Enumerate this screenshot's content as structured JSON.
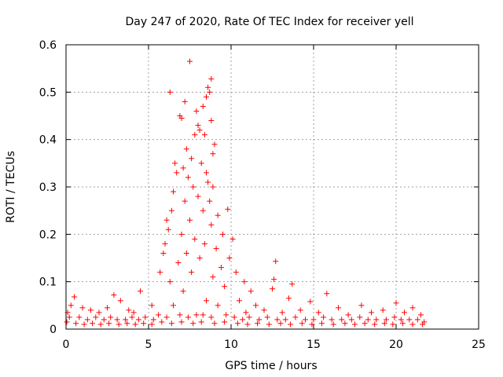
{
  "chart_data": {
    "type": "scatter",
    "title": "Day 247 of 2020, Rate Of TEC Index for receiver yell",
    "xlabel": "GPS time / hours",
    "ylabel": "ROTI / TECUs",
    "xlim": [
      0,
      25
    ],
    "ylim": [
      0,
      0.6
    ],
    "xticks": [
      "0",
      "5",
      "10",
      "15",
      "20",
      "25"
    ],
    "yticks": [
      "0",
      "0.1",
      "0.2",
      "0.3",
      "0.4",
      "0.5",
      "0.6"
    ],
    "grid": true,
    "marker": "plus",
    "color": "#ff0000",
    "series": [
      {
        "points": [
          [
            7.5,
            0.565
          ],
          [
            8.8,
            0.528
          ],
          [
            8.6,
            0.51
          ],
          [
            6.3,
            0.5
          ],
          [
            8.7,
            0.5
          ],
          [
            8.5,
            0.49
          ],
          [
            7.2,
            0.48
          ],
          [
            8.3,
            0.47
          ],
          [
            7.9,
            0.46
          ],
          [
            6.9,
            0.45
          ],
          [
            7.0,
            0.445
          ],
          [
            8.8,
            0.44
          ],
          [
            8.0,
            0.43
          ],
          [
            8.1,
            0.42
          ],
          [
            7.8,
            0.41
          ],
          [
            8.4,
            0.41
          ],
          [
            9.0,
            0.39
          ],
          [
            7.3,
            0.38
          ],
          [
            8.9,
            0.37
          ],
          [
            7.6,
            0.36
          ],
          [
            6.6,
            0.35
          ],
          [
            8.2,
            0.35
          ],
          [
            7.1,
            0.34
          ],
          [
            6.7,
            0.33
          ],
          [
            8.5,
            0.33
          ],
          [
            7.4,
            0.32
          ],
          [
            8.6,
            0.31
          ],
          [
            7.7,
            0.3
          ],
          [
            8.9,
            0.3
          ],
          [
            6.5,
            0.29
          ],
          [
            8.0,
            0.28
          ],
          [
            7.2,
            0.27
          ],
          [
            8.7,
            0.27
          ],
          [
            6.4,
            0.25
          ],
          [
            9.8,
            0.253
          ],
          [
            8.3,
            0.25
          ],
          [
            9.2,
            0.24
          ],
          [
            6.1,
            0.23
          ],
          [
            7.5,
            0.23
          ],
          [
            8.8,
            0.22
          ],
          [
            6.2,
            0.21
          ],
          [
            7.0,
            0.2
          ],
          [
            9.5,
            0.2
          ],
          [
            7.8,
            0.19
          ],
          [
            10.1,
            0.19
          ],
          [
            6.0,
            0.18
          ],
          [
            8.4,
            0.18
          ],
          [
            9.1,
            0.17
          ],
          [
            5.9,
            0.16
          ],
          [
            7.3,
            0.16
          ],
          [
            9.9,
            0.15
          ],
          [
            8.1,
            0.15
          ],
          [
            6.8,
            0.14
          ],
          [
            12.7,
            0.143
          ],
          [
            9.4,
            0.13
          ],
          [
            10.3,
            0.12
          ],
          [
            5.7,
            0.12
          ],
          [
            7.6,
            0.12
          ],
          [
            8.9,
            0.11
          ],
          [
            12.6,
            0.105
          ],
          [
            6.3,
            0.1
          ],
          [
            10.8,
            0.1
          ],
          [
            13.7,
            0.095
          ],
          [
            9.6,
            0.09
          ],
          [
            12.5,
            0.085
          ],
          [
            7.1,
            0.08
          ],
          [
            4.5,
            0.08
          ],
          [
            11.2,
            0.08
          ],
          [
            15.8,
            0.075
          ],
          [
            2.9,
            0.072
          ],
          [
            0.5,
            0.068
          ],
          [
            13.5,
            0.065
          ],
          [
            3.3,
            0.06
          ],
          [
            8.5,
            0.06
          ],
          [
            10.5,
            0.06
          ],
          [
            14.8,
            0.058
          ],
          [
            17.9,
            0.05
          ],
          [
            20.0,
            0.055
          ],
          [
            0.3,
            0.05
          ],
          [
            1.0,
            0.045
          ],
          [
            2.5,
            0.045
          ],
          [
            5.2,
            0.05
          ],
          [
            11.5,
            0.05
          ],
          [
            16.5,
            0.045
          ],
          [
            19.2,
            0.04
          ],
          [
            21.0,
            0.045
          ],
          [
            1.5,
            0.04
          ],
          [
            3.8,
            0.04
          ],
          [
            6.5,
            0.05
          ],
          [
            9.2,
            0.05
          ],
          [
            12.0,
            0.04
          ],
          [
            14.2,
            0.04
          ],
          [
            18.5,
            0.035
          ],
          [
            20.5,
            0.035
          ],
          [
            0.1,
            0.035
          ],
          [
            2.0,
            0.035
          ],
          [
            4.1,
            0.035
          ],
          [
            10.9,
            0.035
          ],
          [
            13.1,
            0.035
          ],
          [
            15.3,
            0.035
          ],
          [
            17.1,
            0.03
          ],
          [
            21.5,
            0.03
          ],
          [
            0.2,
            0.025
          ],
          [
            0.8,
            0.025
          ],
          [
            1.3,
            0.02
          ],
          [
            1.8,
            0.025
          ],
          [
            2.3,
            0.02
          ],
          [
            2.7,
            0.025
          ],
          [
            3.1,
            0.02
          ],
          [
            3.6,
            0.02
          ],
          [
            4.0,
            0.025
          ],
          [
            4.4,
            0.02
          ],
          [
            4.8,
            0.025
          ],
          [
            5.3,
            0.02
          ],
          [
            5.6,
            0.03
          ],
          [
            6.1,
            0.025
          ],
          [
            6.9,
            0.03
          ],
          [
            7.4,
            0.025
          ],
          [
            7.9,
            0.03
          ],
          [
            8.3,
            0.03
          ],
          [
            8.8,
            0.025
          ],
          [
            9.7,
            0.03
          ],
          [
            10.2,
            0.025
          ],
          [
            10.7,
            0.02
          ],
          [
            11.1,
            0.025
          ],
          [
            11.7,
            0.02
          ],
          [
            12.2,
            0.025
          ],
          [
            12.8,
            0.02
          ],
          [
            13.3,
            0.02
          ],
          [
            13.9,
            0.025
          ],
          [
            14.5,
            0.02
          ],
          [
            15.0,
            0.02
          ],
          [
            15.6,
            0.025
          ],
          [
            16.1,
            0.02
          ],
          [
            16.7,
            0.02
          ],
          [
            17.3,
            0.02
          ],
          [
            17.8,
            0.025
          ],
          [
            18.3,
            0.02
          ],
          [
            18.8,
            0.02
          ],
          [
            19.4,
            0.02
          ],
          [
            19.9,
            0.025
          ],
          [
            20.3,
            0.02
          ],
          [
            20.8,
            0.02
          ],
          [
            21.3,
            0.02
          ],
          [
            21.7,
            0.015
          ],
          [
            0.05,
            0.015
          ],
          [
            0.6,
            0.012
          ],
          [
            1.1,
            0.01
          ],
          [
            1.6,
            0.012
          ],
          [
            2.1,
            0.01
          ],
          [
            2.6,
            0.012
          ],
          [
            3.2,
            0.01
          ],
          [
            3.7,
            0.012
          ],
          [
            4.2,
            0.01
          ],
          [
            4.7,
            0.012
          ],
          [
            5.2,
            0.01
          ],
          [
            5.8,
            0.015
          ],
          [
            6.4,
            0.012
          ],
          [
            7.0,
            0.015
          ],
          [
            7.7,
            0.012
          ],
          [
            8.2,
            0.015
          ],
          [
            9.0,
            0.012
          ],
          [
            9.6,
            0.015
          ],
          [
            10.4,
            0.012
          ],
          [
            11.0,
            0.01
          ],
          [
            11.6,
            0.012
          ],
          [
            12.3,
            0.01
          ],
          [
            13.0,
            0.012
          ],
          [
            13.6,
            0.01
          ],
          [
            14.3,
            0.012
          ],
          [
            14.9,
            0.01
          ],
          [
            15.5,
            0.012
          ],
          [
            16.2,
            0.01
          ],
          [
            16.9,
            0.012
          ],
          [
            17.5,
            0.01
          ],
          [
            18.1,
            0.012
          ],
          [
            18.7,
            0.01
          ],
          [
            19.3,
            0.012
          ],
          [
            19.8,
            0.01
          ],
          [
            20.4,
            0.012
          ],
          [
            21.0,
            0.01
          ],
          [
            21.6,
            0.01
          ]
        ]
      }
    ]
  }
}
